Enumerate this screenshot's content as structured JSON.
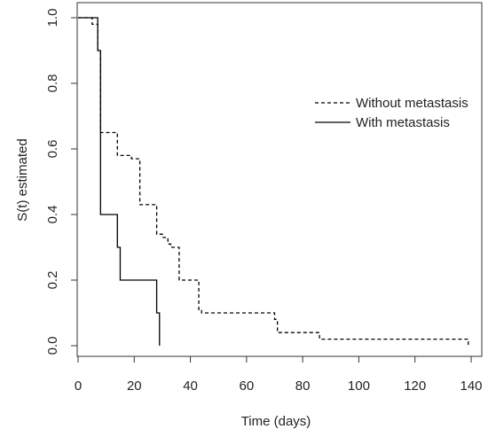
{
  "chart_data": {
    "type": "line",
    "title": "",
    "xlabel": "Time (days)",
    "ylabel": "S(t) estimated",
    "xlim": [
      0,
      140
    ],
    "ylim": [
      0,
      1
    ],
    "x_ticks": [
      "0",
      "20",
      "40",
      "60",
      "80",
      "100",
      "120",
      "140"
    ],
    "x_tick_values": [
      0,
      20,
      40,
      60,
      80,
      100,
      120,
      140
    ],
    "y_ticks": [
      "0.0",
      "0.2",
      "0.4",
      "0.6",
      "0.8",
      "1.0"
    ],
    "y_tick_values": [
      0,
      0.2,
      0.4,
      0.6,
      0.8,
      1.0
    ],
    "grid": false,
    "legend_position": "top-right",
    "series": [
      {
        "name": "Without metastasis",
        "line_style": "dashed",
        "color": "#000000",
        "x": [
          0,
          5,
          7,
          8,
          14,
          16,
          19,
          22,
          28,
          30,
          32,
          33,
          36,
          43,
          44,
          70,
          71,
          86,
          139
        ],
        "y": [
          1.0,
          0.98,
          0.9,
          0.65,
          0.58,
          0.58,
          0.57,
          0.43,
          0.34,
          0.33,
          0.31,
          0.3,
          0.2,
          0.11,
          0.1,
          0.08,
          0.04,
          0.02,
          0.0
        ]
      },
      {
        "name": "With metastasis",
        "line_style": "solid",
        "color": "#000000",
        "x": [
          0,
          6,
          7,
          8,
          14,
          15,
          28,
          29
        ],
        "y": [
          1.0,
          1.0,
          0.9,
          0.4,
          0.3,
          0.2,
          0.1,
          0.0
        ]
      }
    ]
  }
}
